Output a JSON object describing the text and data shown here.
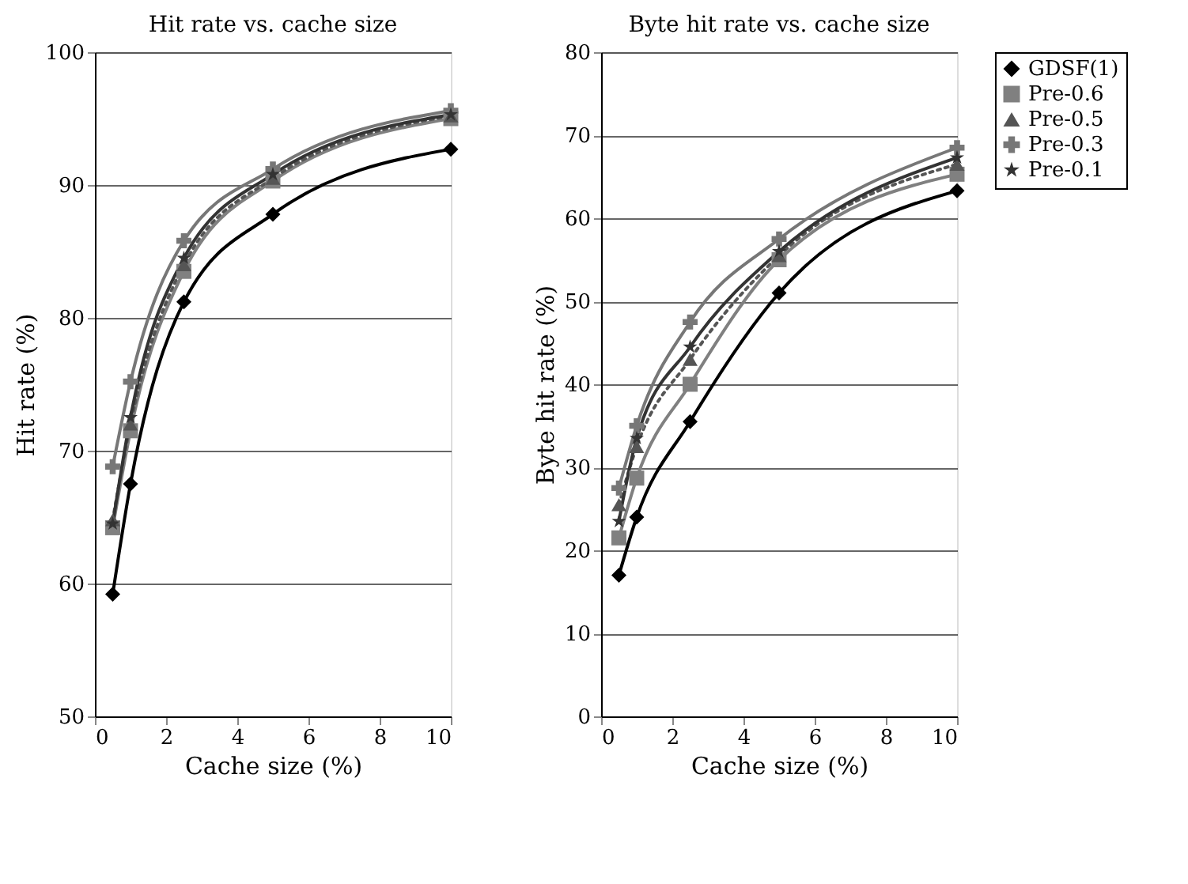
{
  "chart_data": [
    {
      "type": "line",
      "title": "Hit rate vs. cache size",
      "xlabel": "Cache size (%)",
      "ylabel": "Hit rate (%)",
      "x": [
        0.5,
        1,
        2.5,
        5,
        10
      ],
      "xlim": [
        0,
        10
      ],
      "xticks": [
        0,
        2,
        4,
        6,
        8,
        10
      ],
      "ylim": [
        50,
        100
      ],
      "yticks": [
        50,
        60,
        70,
        80,
        90,
        100
      ],
      "grid": "y",
      "legend": "right",
      "series": [
        {
          "name": "GDSF(1)",
          "color": "#000000",
          "marker": "diamond",
          "line_style": "solid",
          "values": [
            59.2,
            67.5,
            81.2,
            87.8,
            92.7
          ]
        },
        {
          "name": "Pre-0.6",
          "color": "#808080",
          "marker": "square",
          "line_style": "solid",
          "values": [
            64.2,
            71.5,
            83.5,
            90.3,
            95.0
          ]
        },
        {
          "name": "Pre-0.5",
          "color": "#555555",
          "marker": "triangle",
          "line_style": "dotted",
          "values": [
            64.8,
            72.0,
            84.0,
            90.5,
            95.2
          ]
        },
        {
          "name": "Pre-0.3",
          "color": "#777777",
          "marker": "cross",
          "line_style": "solid",
          "values": [
            68.8,
            75.2,
            85.8,
            91.2,
            95.6
          ]
        },
        {
          "name": "Pre-0.1",
          "color": "#333333",
          "marker": "star",
          "line_style": "solid",
          "values": [
            64.5,
            72.5,
            84.5,
            90.8,
            95.3
          ]
        }
      ]
    },
    {
      "type": "line",
      "title": "Byte hit rate vs. cache size",
      "xlabel": "Cache size (%)",
      "ylabel": "Byte hit rate (%)",
      "x": [
        0.5,
        1,
        2.5,
        5,
        10
      ],
      "xlim": [
        0,
        10
      ],
      "xticks": [
        0,
        2,
        4,
        6,
        8,
        10
      ],
      "ylim": [
        0,
        80
      ],
      "yticks": [
        0,
        10,
        20,
        30,
        40,
        50,
        60,
        70,
        80
      ],
      "grid": "y",
      "legend": "right",
      "series": [
        {
          "name": "GDSF(1)",
          "color": "#000000",
          "marker": "diamond",
          "line_style": "solid",
          "values": [
            17,
            24,
            35.5,
            51,
            63.3
          ]
        },
        {
          "name": "Pre-0.6",
          "color": "#808080",
          "marker": "square",
          "line_style": "solid",
          "values": [
            21.5,
            28.7,
            40,
            55,
            65.3
          ]
        },
        {
          "name": "Pre-0.5",
          "color": "#555555",
          "marker": "triangle",
          "line_style": "dotted",
          "values": [
            25.5,
            32.5,
            43,
            55.5,
            66.5
          ]
        },
        {
          "name": "Pre-0.3",
          "color": "#777777",
          "marker": "cross",
          "line_style": "solid",
          "values": [
            27.5,
            35,
            47.5,
            57.5,
            68.5
          ]
        },
        {
          "name": "Pre-0.1",
          "color": "#333333",
          "marker": "star",
          "line_style": "solid",
          "values": [
            23.5,
            33.5,
            44.5,
            56,
            67.3
          ]
        }
      ]
    }
  ]
}
